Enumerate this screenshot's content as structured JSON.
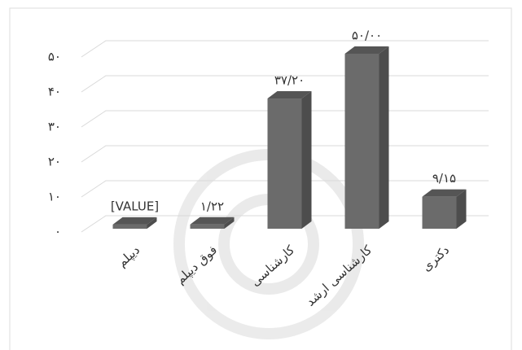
{
  "chart_data": {
    "type": "bar3d",
    "categories": [
      "دیپلم",
      "فوق دیپلم",
      "کارشناسی",
      "کارشناسی ارشد",
      "دکتری"
    ],
    "values": [
      1.2,
      1.22,
      37.2,
      50,
      9.15
    ],
    "value_labels": [
      "[VALUE]",
      "۱/۲۲",
      "۳۷/۲۰",
      "۵۰/۰۰",
      "۹/۱۵"
    ],
    "color": "#6b6b6b",
    "ylim": [
      0,
      50
    ],
    "yticks": [
      {
        "value": 0,
        "label": "۰"
      },
      {
        "value": 10,
        "label": "۱۰"
      },
      {
        "value": 20,
        "label": "۲۰"
      },
      {
        "value": 30,
        "label": "۳۰"
      },
      {
        "value": 40,
        "label": "۴۰"
      },
      {
        "value": 50,
        "label": "۵۰"
      }
    ],
    "grid": true
  }
}
